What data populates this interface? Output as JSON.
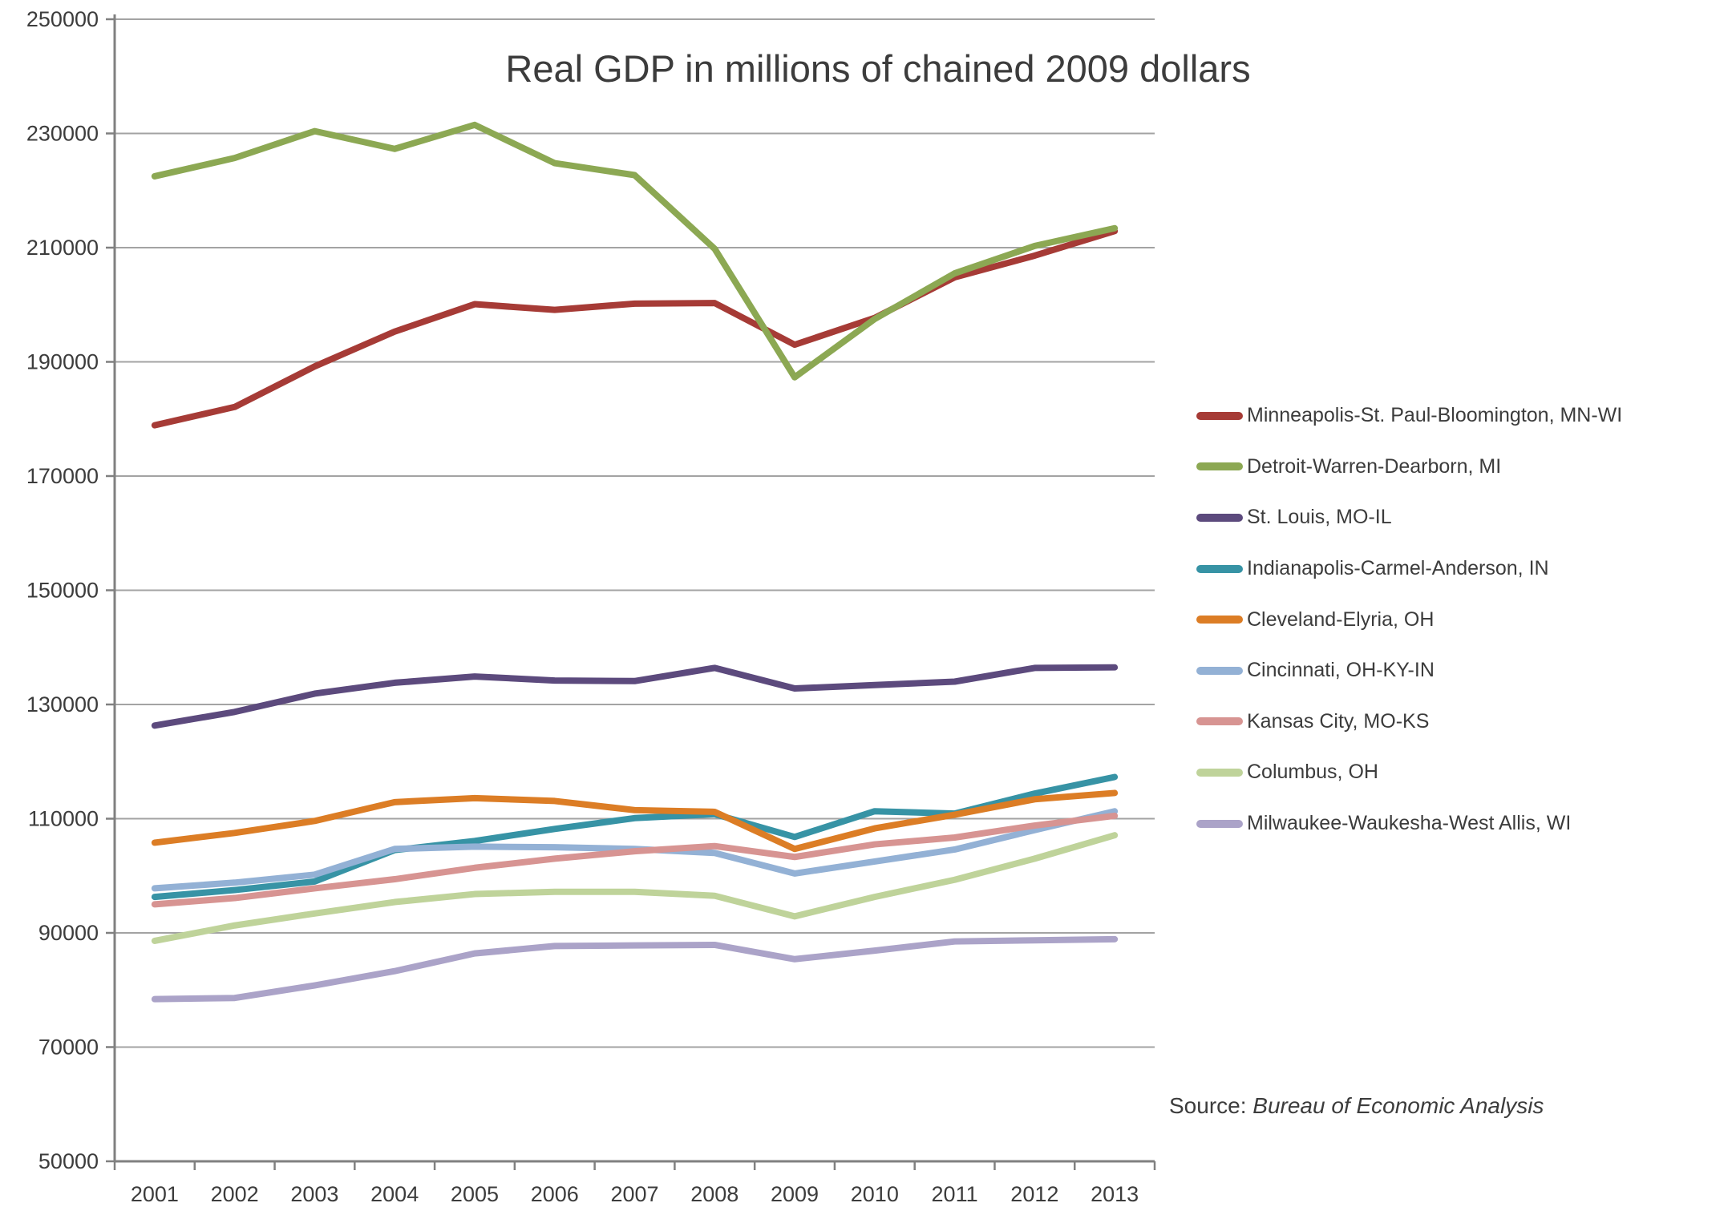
{
  "title": "Real GDP in millions of chained 2009 dollars",
  "source": {
    "prefix": "Source: ",
    "text": "Bureau of Economic Analysis"
  },
  "colors": {
    "gridline": "#a3a3a3",
    "axis": "#808080",
    "text": "#3c3c3c"
  },
  "chart_data": {
    "type": "line",
    "title": "Real GDP in millions of chained 2009 dollars",
    "xlabel": "",
    "ylabel": "",
    "x": [
      2001,
      2002,
      2003,
      2004,
      2005,
      2006,
      2007,
      2008,
      2009,
      2010,
      2011,
      2012,
      2013
    ],
    "ylim": [
      50000,
      250000
    ],
    "ytick_step": 20000,
    "ytick_labels": [
      "50000",
      "70000",
      "90000",
      "110000",
      "130000",
      "150000",
      "170000",
      "190000",
      "210000",
      "230000",
      "250000"
    ],
    "grid": true,
    "legend_position": "right",
    "series": [
      {
        "name": "Minneapolis-St. Paul-Bloomington, MN-WI",
        "color": "#a63b36",
        "values": [
          178900,
          182100,
          189200,
          195300,
          200100,
          199100,
          200200,
          200300,
          193000,
          197700,
          204800,
          208600,
          212900
        ]
      },
      {
        "name": "Detroit-Warren-Dearborn, MI",
        "color": "#8ca853",
        "values": [
          222500,
          225700,
          230400,
          227300,
          231500,
          224800,
          222700,
          209800,
          187300,
          197500,
          205500,
          210300,
          213400
        ]
      },
      {
        "name": "St. Louis, MO-IL",
        "color": "#5c4a7d",
        "values": [
          126300,
          128700,
          131900,
          133800,
          134900,
          134200,
          134100,
          136400,
          132800,
          133400,
          134000,
          136400,
          136500
        ]
      },
      {
        "name": "Indianapolis-Carmel-Anderson, IN",
        "color": "#3793a5",
        "values": [
          96300,
          97500,
          99000,
          104500,
          106100,
          108200,
          110100,
          110800,
          106800,
          111300,
          110900,
          114400,
          117300
        ]
      },
      {
        "name": "Cleveland-Elyria, OH",
        "color": "#dc7d25",
        "values": [
          105800,
          107500,
          109600,
          112900,
          113600,
          113100,
          111500,
          111200,
          104700,
          108300,
          110700,
          113400,
          114500
        ]
      },
      {
        "name": "Cincinnati, OH-KY-IN",
        "color": "#93b1d5",
        "values": [
          97800,
          98800,
          100200,
          104700,
          105100,
          105000,
          104700,
          104000,
          100400,
          102500,
          104600,
          108000,
          111300
        ]
      },
      {
        "name": "Kansas City, MO-KS",
        "color": "#d79492",
        "values": [
          95000,
          96100,
          97800,
          99400,
          101400,
          103000,
          104300,
          105200,
          103300,
          105500,
          106700,
          108800,
          110500
        ]
      },
      {
        "name": "Columbus, OH",
        "color": "#bfd39a",
        "values": [
          88600,
          91300,
          93400,
          95400,
          96800,
          97200,
          97200,
          96500,
          92900,
          96300,
          99300,
          103000,
          107100
        ]
      },
      {
        "name": "Milwaukee-Waukesha-West Allis, WI",
        "color": "#aba3c8",
        "values": [
          78400,
          78600,
          80800,
          83300,
          86400,
          87700,
          87800,
          87900,
          85400,
          86900,
          88500,
          88700,
          88900
        ]
      }
    ]
  }
}
